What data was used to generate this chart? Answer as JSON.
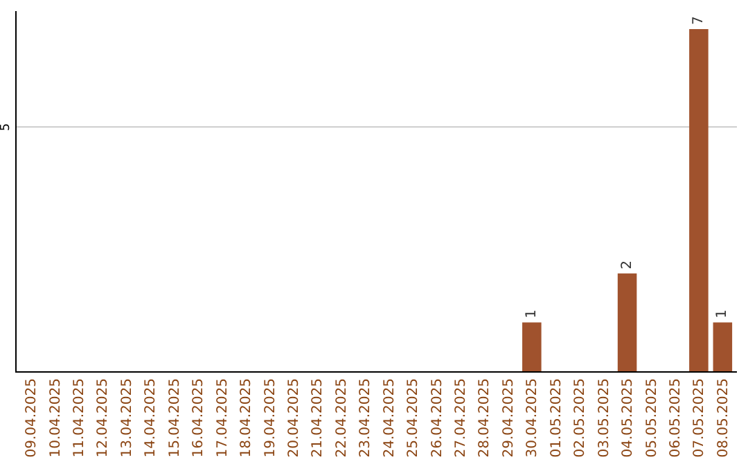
{
  "chart_data": {
    "type": "bar",
    "categories": [
      "09.04.2025",
      "10.04.2025",
      "11.04.2025",
      "12.04.2025",
      "13.04.2025",
      "14.04.2025",
      "15.04.2025",
      "16.04.2025",
      "17.04.2025",
      "18.04.2025",
      "19.04.2025",
      "20.04.2025",
      "21.04.2025",
      "22.04.2025",
      "23.04.2025",
      "24.04.2025",
      "25.04.2025",
      "26.04.2025",
      "27.04.2025",
      "28.04.2025",
      "29.04.2025",
      "30.04.2025",
      "01.05.2025",
      "02.05.2025",
      "03.05.2025",
      "04.05.2025",
      "05.05.2025",
      "06.05.2025",
      "07.05.2025",
      "08.05.2025"
    ],
    "values": [
      null,
      null,
      null,
      null,
      null,
      null,
      null,
      null,
      null,
      null,
      null,
      null,
      null,
      null,
      null,
      null,
      null,
      null,
      null,
      null,
      null,
      1,
      null,
      null,
      null,
      2,
      null,
      null,
      7,
      1
    ],
    "ref_lines": [
      {
        "axis": "y",
        "value": 5,
        "label": "5",
        "color": "#cccccc"
      }
    ],
    "value_labels": [
      null,
      null,
      null,
      null,
      null,
      null,
      null,
      null,
      null,
      null,
      null,
      null,
      null,
      null,
      null,
      null,
      null,
      null,
      null,
      null,
      null,
      "1",
      null,
      null,
      null,
      "2",
      null,
      null,
      "7",
      "1"
    ],
    "color": "#a0522d",
    "grid": false
  }
}
